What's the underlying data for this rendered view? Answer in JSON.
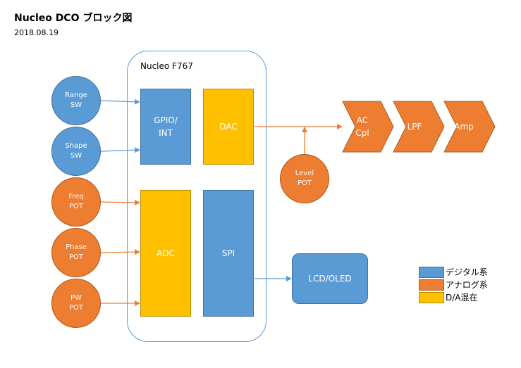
{
  "header": {
    "title": "Nucleo DCO ブロック図",
    "date": "2018.08.19"
  },
  "mcu": {
    "label": "Nucleo F767",
    "gpio": "GPIO/\nINT",
    "dac": "DAC",
    "adc": "ADC",
    "spi": "SPI"
  },
  "inputs": {
    "range": "Range\nSW",
    "shape": "Shape\nSW",
    "freq": "Freq\nPOT",
    "phase": "Phase\nPOT",
    "pw": "PW\nPOT"
  },
  "output": {
    "level": "Level\nPOT",
    "ac_cpl": "AC\nCpl",
    "lpf": "LPF",
    "amp": "Amp"
  },
  "display": {
    "lcd": "LCD/OLED"
  },
  "legend": [
    {
      "label": "デジタル系",
      "color": "#5b9bd5"
    },
    {
      "label": "アナログ系",
      "color": "#ed7d31"
    },
    {
      "label": "D/A混在",
      "color": "#ffc000"
    }
  ],
  "colors": {
    "digital": "#5b9bd5",
    "analog": "#ed7d31",
    "mixed": "#ffc000"
  }
}
